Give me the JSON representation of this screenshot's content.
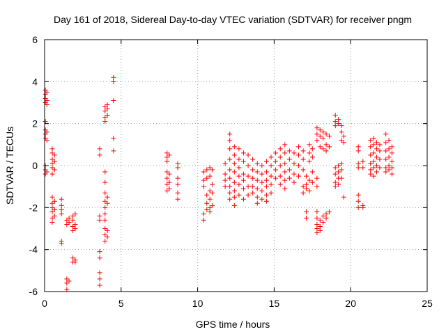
{
  "chart_data": {
    "type": "scatter",
    "title": "Day 161 of 2018, Sidereal Day-to-day VTEC variation (SDTVAR) for receiver pngm",
    "xlabel": "GPS time / hours",
    "ylabel": "SDTVAR / TECUs",
    "xlim": [
      0,
      25
    ],
    "ylim": [
      -6,
      6
    ],
    "xticks": [
      0,
      5,
      10,
      15,
      20,
      25
    ],
    "yticks": [
      -6,
      -4,
      -2,
      0,
      2,
      4,
      6
    ],
    "xtick_labels": [
      "0",
      "5",
      "10",
      "15",
      "20",
      "25"
    ],
    "ytick_labels": [
      "-6",
      "-4",
      "-2",
      "0",
      "2",
      "4",
      "6"
    ],
    "grid": true,
    "marker": "plus",
    "color": "#ff0000",
    "clusters": [
      {
        "x": 0.05,
        "y": [
          3.6,
          3.4,
          3.2,
          3.0,
          2.1,
          1.7,
          1.5,
          1.3,
          0.0,
          -0.2,
          -0.4
        ]
      },
      {
        "x": 0.15,
        "y": [
          3.5,
          3.1,
          2.9,
          1.6,
          1.2,
          -0.3
        ]
      },
      {
        "x": 0.5,
        "y": [
          0.8,
          0.6,
          0.3,
          0.1,
          -0.1,
          -0.4,
          -1.5,
          -1.8,
          -2.0,
          -2.2,
          -2.5,
          -2.7
        ]
      },
      {
        "x": 0.65,
        "y": [
          0.5,
          0.2,
          -0.2,
          -1.7,
          -2.1,
          -2.4
        ]
      },
      {
        "x": 1.1,
        "y": [
          -1.6,
          -1.9,
          -2.1,
          -2.3,
          -3.6,
          -3.7
        ]
      },
      {
        "x": 1.45,
        "y": [
          -2.6,
          -2.8,
          -5.4,
          -5.6,
          -5.9
        ]
      },
      {
        "x": 1.6,
        "y": [
          -2.5,
          -2.7,
          -5.5
        ]
      },
      {
        "x": 1.85,
        "y": [
          -2.4,
          -2.6,
          -2.9,
          -3.1,
          -4.4,
          -4.6
        ]
      },
      {
        "x": 2.0,
        "y": [
          -2.3,
          -2.8,
          -3.0,
          -4.5,
          -4.6
        ]
      },
      {
        "x": 3.6,
        "y": [
          0.8,
          0.5,
          -2.4,
          -2.6,
          -4.1,
          -4.4,
          -5.1,
          -5.4,
          -5.7
        ]
      },
      {
        "x": 3.95,
        "y": [
          2.8,
          2.6,
          2.3,
          2.1,
          -0.3,
          -0.8,
          -1.3,
          -1.7,
          -2.0,
          -2.3,
          -2.6,
          -3.0,
          -3.3,
          -3.6
        ]
      },
      {
        "x": 4.1,
        "y": [
          2.9,
          2.7,
          2.4,
          -1.5,
          -1.8,
          -3.1,
          -3.4
        ]
      },
      {
        "x": 4.5,
        "y": [
          4.2,
          4.0,
          3.1,
          1.3,
          0.7
        ]
      },
      {
        "x": 8.0,
        "y": [
          0.6,
          0.4,
          0.2,
          -0.3,
          -0.6,
          -0.9,
          -1.2
        ]
      },
      {
        "x": 8.15,
        "y": [
          0.5,
          -0.4,
          -0.8,
          -1.1
        ]
      },
      {
        "x": 8.7,
        "y": [
          0.1,
          -0.1,
          -0.6,
          -0.9,
          -1.3,
          -1.6
        ]
      },
      {
        "x": 10.4,
        "y": [
          -0.3,
          -0.7,
          -1.0,
          -2.3,
          -2.6
        ]
      },
      {
        "x": 10.6,
        "y": [
          -0.2,
          -0.6,
          -1.4,
          -1.8,
          -2.1
        ]
      },
      {
        "x": 10.8,
        "y": [
          -0.1,
          -0.5,
          -1.2,
          -1.6,
          -2.0,
          -2.2
        ]
      },
      {
        "x": 10.95,
        "y": [
          -0.2,
          -0.9,
          -1.3,
          -1.9
        ]
      },
      {
        "x": 11.8,
        "y": [
          0.1,
          -0.4,
          -0.7,
          -1.0
        ]
      },
      {
        "x": 12.1,
        "y": [
          1.5,
          1.2,
          0.8,
          0.3,
          -0.2,
          -0.6,
          -1.0,
          -1.3,
          -1.6
        ]
      },
      {
        "x": 12.4,
        "y": [
          0.9,
          0.5,
          0.1,
          -0.3,
          -0.8,
          -1.2,
          -1.5,
          -1.9
        ]
      },
      {
        "x": 12.7,
        "y": [
          0.8,
          0.3,
          -0.1,
          -0.5,
          -0.9,
          -1.4
        ]
      },
      {
        "x": 13.0,
        "y": [
          0.6,
          0.2,
          -0.4,
          -0.7,
          -1.1,
          -1.6
        ]
      },
      {
        "x": 13.3,
        "y": [
          0.5,
          0.0,
          -0.5,
          -1.0,
          -1.4
        ]
      },
      {
        "x": 13.6,
        "y": [
          0.3,
          -0.2,
          -0.6,
          -1.0,
          -1.3
        ]
      },
      {
        "x": 13.9,
        "y": [
          0.1,
          -0.3,
          -0.7,
          -1.1,
          -1.5,
          -1.8
        ]
      },
      {
        "x": 14.2,
        "y": [
          0.0,
          -0.4,
          -0.8,
          -1.2,
          -1.6
        ]
      },
      {
        "x": 14.5,
        "y": [
          0.2,
          -0.3,
          -0.7,
          -1.0,
          -1.4,
          -1.7
        ]
      },
      {
        "x": 14.8,
        "y": [
          0.4,
          0.0,
          -0.5,
          -0.9,
          -1.3
        ]
      },
      {
        "x": 15.1,
        "y": [
          0.6,
          0.2,
          -0.2,
          -0.6
        ]
      },
      {
        "x": 15.4,
        "y": [
          0.8,
          0.4,
          0.0,
          -0.5,
          -0.9
        ]
      },
      {
        "x": 15.7,
        "y": [
          1.0,
          0.6,
          0.1,
          -0.3,
          -0.7,
          -1.1
        ]
      },
      {
        "x": 16.0,
        "y": [
          0.7,
          0.3,
          -0.2,
          -0.6
        ]
      },
      {
        "x": 16.3,
        "y": [
          0.6,
          0.1,
          -0.4,
          -0.8
        ]
      },
      {
        "x": 16.6,
        "y": [
          0.9,
          0.5,
          0.0,
          -0.5
        ]
      },
      {
        "x": 16.9,
        "y": [
          0.7,
          0.3,
          -0.2,
          -1.0,
          -1.3
        ]
      },
      {
        "x": 17.1,
        "y": [
          -0.5,
          -0.9,
          -1.1,
          -2.2,
          -2.5
        ]
      },
      {
        "x": 17.3,
        "y": [
          1.0,
          0.6,
          0.2,
          -0.7,
          -1.2
        ]
      },
      {
        "x": 17.5,
        "y": [
          0.8,
          0.4,
          -0.3,
          -0.8
        ]
      },
      {
        "x": 17.8,
        "y": [
          1.8,
          1.5,
          1.2,
          -0.6,
          -1.0,
          -2.2,
          -2.5,
          -2.8,
          -3.0,
          -3.2
        ]
      },
      {
        "x": 18.0,
        "y": [
          1.7,
          1.4,
          0.9,
          -2.6,
          -2.9,
          -3.1
        ]
      },
      {
        "x": 18.2,
        "y": [
          1.6,
          1.3,
          0.8,
          -2.4,
          -2.7
        ]
      },
      {
        "x": 18.4,
        "y": [
          1.5,
          1.0,
          0.7,
          -2.3,
          -2.5
        ]
      },
      {
        "x": 18.6,
        "y": [
          1.4,
          0.9,
          -2.2
        ]
      },
      {
        "x": 19.0,
        "y": [
          2.4,
          2.1,
          1.9,
          -0.1,
          -0.4,
          -0.8,
          -1.0
        ]
      },
      {
        "x": 19.2,
        "y": [
          2.2,
          2.0,
          0.0,
          -0.3,
          -0.6,
          -0.9
        ]
      },
      {
        "x": 19.4,
        "y": [
          1.9,
          1.6,
          1.2,
          0.1,
          -0.2,
          -0.6
        ]
      },
      {
        "x": 19.55,
        "y": [
          1.4,
          1.1,
          -1.5
        ]
      },
      {
        "x": 20.5,
        "y": [
          0.9,
          0.7,
          0.1,
          -0.1,
          -1.4,
          -1.7,
          -2.0
        ]
      },
      {
        "x": 20.8,
        "y": [
          0.2,
          -0.1,
          -1.9,
          -2.0
        ]
      },
      {
        "x": 21.3,
        "y": [
          1.2,
          0.9,
          0.5,
          0.1,
          -0.2,
          -0.4
        ]
      },
      {
        "x": 21.5,
        "y": [
          1.3,
          1.0,
          0.6,
          0.2,
          -0.1,
          -0.5
        ]
      },
      {
        "x": 21.7,
        "y": [
          1.1,
          0.8,
          0.4,
          0.0,
          -0.3
        ]
      },
      {
        "x": 21.9,
        "y": [
          1.0,
          0.7,
          0.3,
          -0.1
        ]
      },
      {
        "x": 22.3,
        "y": [
          1.5,
          1.1,
          0.7,
          0.3,
          -0.1,
          -0.3
        ]
      },
      {
        "x": 22.5,
        "y": [
          1.2,
          0.8,
          0.4,
          0.0,
          -0.2
        ]
      },
      {
        "x": 22.7,
        "y": [
          0.9,
          0.6,
          0.2,
          -0.1,
          -0.4
        ]
      }
    ]
  }
}
